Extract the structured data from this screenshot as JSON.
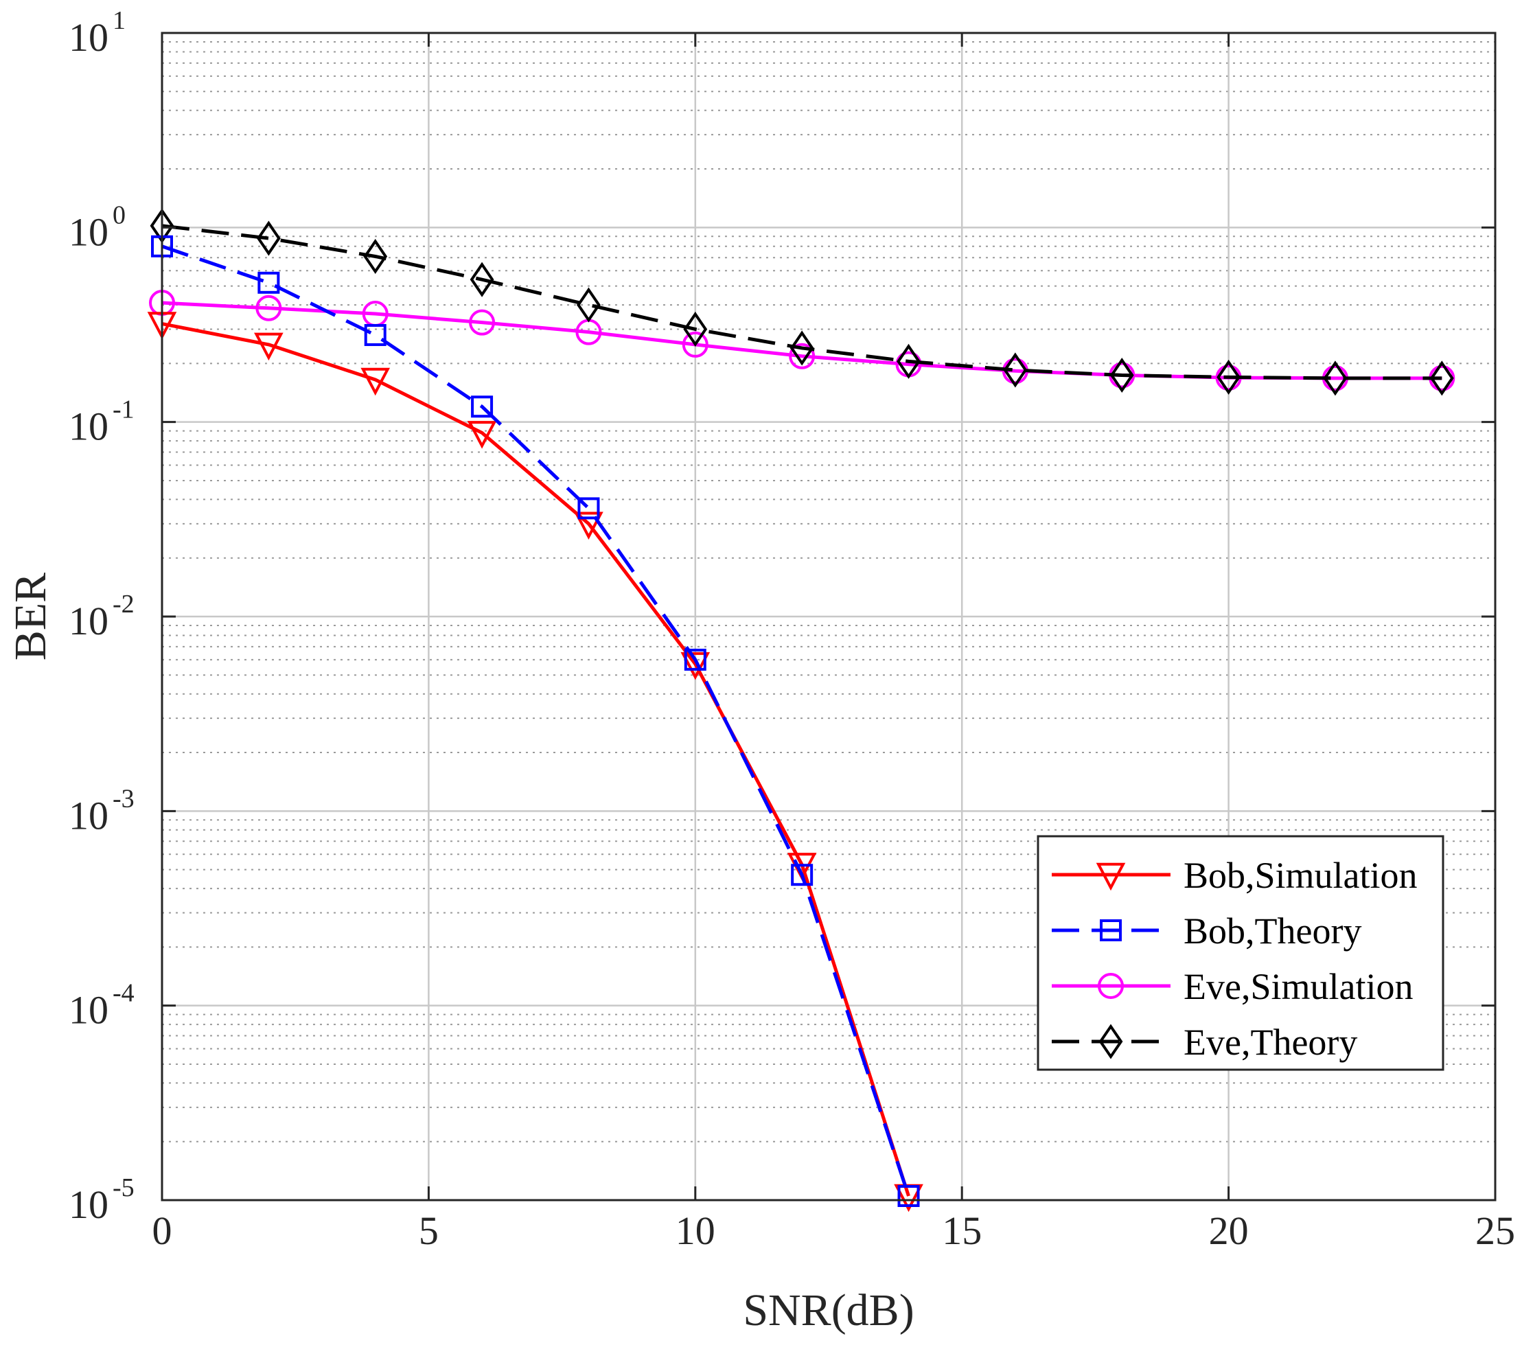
{
  "chart_data": {
    "type": "line",
    "xlabel": "SNR(dB)",
    "ylabel": "BER",
    "xlim": [
      0,
      25
    ],
    "ylim": [
      1e-05,
      10
    ],
    "yscale": "log",
    "grid": true,
    "minor_grid": true,
    "x_ticks": [
      "0",
      "5",
      "10",
      "15",
      "20",
      "25"
    ],
    "x_tick_values": [
      0,
      5,
      10,
      15,
      20,
      25
    ],
    "y_ticks": [
      {
        "base": "10",
        "exp": "1"
      },
      {
        "base": "10",
        "exp": "0"
      },
      {
        "base": "10",
        "exp": "-1"
      },
      {
        "base": "10",
        "exp": "-2"
      },
      {
        "base": "10",
        "exp": "-3"
      },
      {
        "base": "10",
        "exp": "-4"
      },
      {
        "base": "10",
        "exp": "-5"
      }
    ],
    "legend_position": "bottom-right",
    "series": [
      {
        "name": "Bob,Simulation",
        "color": "#ff0000",
        "line_style": "solid",
        "marker": "triangle-down",
        "x": [
          0,
          2,
          4,
          6,
          8,
          10,
          12,
          14
        ],
        "y": [
          0.32,
          0.25,
          0.165,
          0.088,
          0.03,
          0.0057,
          0.00053,
          1.05e-05
        ]
      },
      {
        "name": "Bob,Theory",
        "color": "#0000ff",
        "line_style": "dashed",
        "marker": "square",
        "x": [
          0,
          2,
          4,
          6,
          8,
          10,
          12,
          14
        ],
        "y": [
          0.8,
          0.52,
          0.28,
          0.12,
          0.036,
          0.006,
          0.00047,
          1.05e-05
        ]
      },
      {
        "name": "Eve,Simulation",
        "color": "#ff00ff",
        "line_style": "solid",
        "marker": "circle",
        "x": [
          0,
          2,
          4,
          6,
          8,
          10,
          12,
          14,
          16,
          18,
          20,
          22,
          24
        ],
        "y": [
          0.41,
          0.385,
          0.36,
          0.325,
          0.29,
          0.25,
          0.218,
          0.198,
          0.183,
          0.174,
          0.169,
          0.168,
          0.168
        ]
      },
      {
        "name": "Eve,Theory",
        "color": "#000000",
        "line_style": "dashed",
        "marker": "diamond",
        "x": [
          0,
          2,
          4,
          6,
          8,
          10,
          12,
          14,
          16,
          18,
          20,
          22,
          24
        ],
        "y": [
          1.02,
          0.88,
          0.71,
          0.54,
          0.4,
          0.3,
          0.24,
          0.205,
          0.185,
          0.174,
          0.17,
          0.168,
          0.168
        ]
      }
    ]
  }
}
